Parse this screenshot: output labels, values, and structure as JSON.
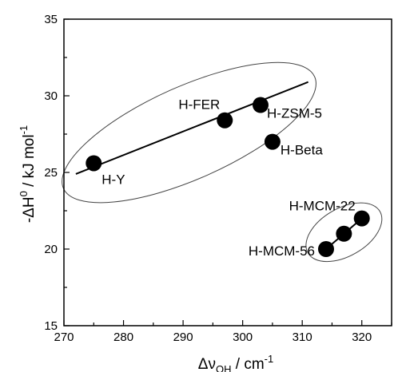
{
  "chart_data": {
    "type": "scatter",
    "xlabel": {
      "main": "Δν",
      "sub": "OH",
      "rest": " / cm",
      "sup": "-1"
    },
    "ylabel": {
      "main": "-ΔH",
      "sup": "0",
      "rest": " / kJ mol",
      "sup2": "-1"
    },
    "xlim": [
      270,
      325
    ],
    "ylim": [
      15,
      35
    ],
    "xticks": [
      270,
      280,
      290,
      300,
      310,
      320
    ],
    "yticks": [
      15,
      20,
      25,
      30,
      35
    ],
    "grid": false,
    "points": [
      {
        "label": "H-Y",
        "x": 275,
        "y": 25.6
      },
      {
        "label": "H-FER",
        "x": 297,
        "y": 28.4
      },
      {
        "label": "H-ZSM-5",
        "x": 303,
        "y": 29.4
      },
      {
        "label": "H-Beta",
        "x": 305,
        "y": 27.0
      },
      {
        "label": "H-MCM-22",
        "x": 320,
        "y": 22.0
      },
      {
        "label": "",
        "x": 317,
        "y": 21.0
      },
      {
        "label": "H-MCM-56",
        "x": 314,
        "y": 20.0
      }
    ],
    "fit_lines": [
      {
        "x": [
          272,
          311
        ],
        "y": [
          24.9,
          30.9
        ]
      },
      {
        "x": [
          314,
          320
        ],
        "y": [
          20.0,
          22.0
        ]
      }
    ],
    "groups": [
      {
        "center_x": 291,
        "center_y": 27.6
      },
      {
        "center_x": 317,
        "center_y": 21.1
      }
    ]
  }
}
